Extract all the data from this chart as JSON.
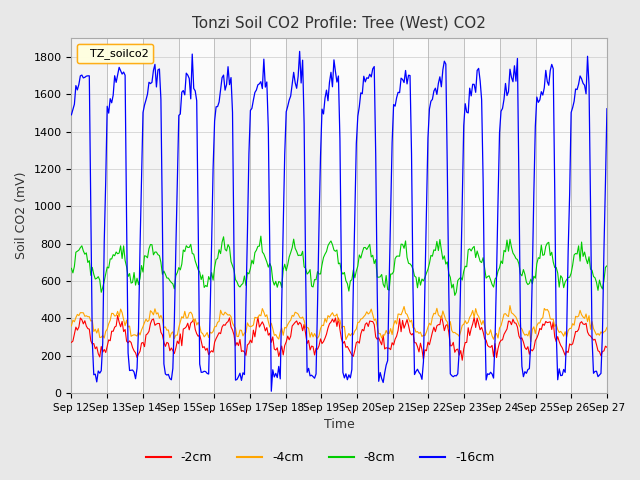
{
  "title": "Tonzi Soil CO2 Profile: Tree (West) CO2",
  "ylabel": "Soil CO2 (mV)",
  "xlabel": "Time",
  "legend_label": "TZ_soilco2",
  "legend_entries": [
    "-2cm",
    "-4cm",
    "-8cm",
    "-16cm"
  ],
  "legend_colors": [
    "#ff0000",
    "#ffa500",
    "#00cc00",
    "#0000ff"
  ],
  "ylim": [
    0,
    1900
  ],
  "yticks": [
    0,
    200,
    400,
    600,
    800,
    1000,
    1200,
    1400,
    1600,
    1800
  ],
  "bg_color": "#e8e8e8",
  "plot_bg_color": "#ffffff",
  "grid_color": "#cccccc",
  "num_days": 15,
  "start_day": 12,
  "seed": 42
}
